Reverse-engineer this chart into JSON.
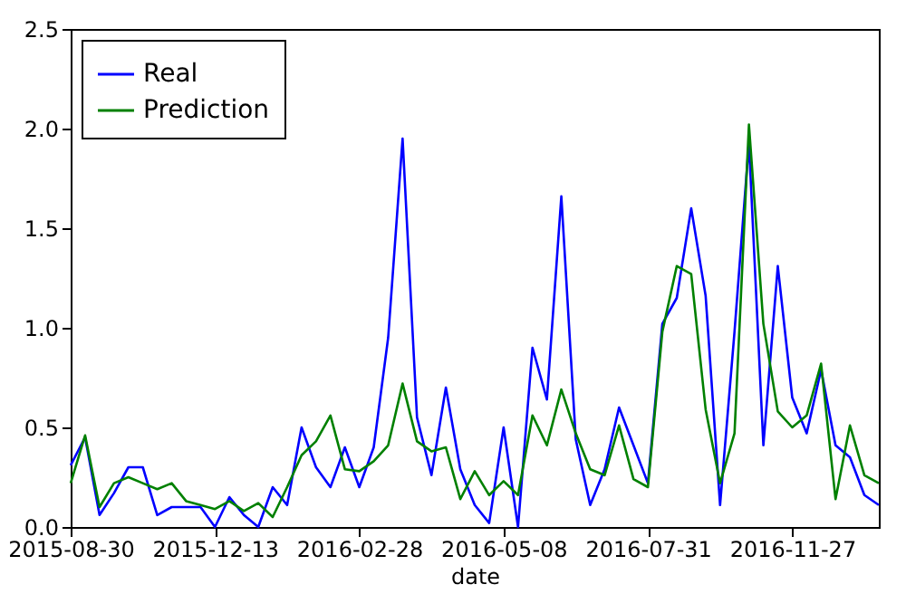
{
  "chart_data": {
    "type": "line",
    "xlabel": "date",
    "categories": [
      "2015-08-30",
      null,
      null,
      null,
      null,
      null,
      null,
      null,
      null,
      null,
      "2015-12-13",
      null,
      null,
      null,
      null,
      null,
      null,
      null,
      null,
      null,
      "2016-02-28",
      null,
      null,
      null,
      null,
      null,
      null,
      null,
      null,
      null,
      "2016-05-08",
      null,
      null,
      null,
      null,
      null,
      null,
      null,
      null,
      null,
      "2016-07-31",
      null,
      null,
      null,
      null,
      null,
      null,
      null,
      null,
      null,
      "2016-11-27",
      null,
      null,
      null,
      null,
      null,
      null
    ],
    "series": [
      {
        "name": "Real",
        "color": "#0000ff",
        "values": [
          0.31,
          0.45,
          0.06,
          0.17,
          0.3,
          0.3,
          0.06,
          0.1,
          0.1,
          0.1,
          0.0,
          0.15,
          0.06,
          0.0,
          0.2,
          0.11,
          0.5,
          0.3,
          0.2,
          0.4,
          0.2,
          0.4,
          0.95,
          1.95,
          0.55,
          0.26,
          0.7,
          0.29,
          0.11,
          0.02,
          0.5,
          0.0,
          0.9,
          0.64,
          1.66,
          0.44,
          0.11,
          0.29,
          0.6,
          0.41,
          0.22,
          1.02,
          1.15,
          1.6,
          1.16,
          0.11,
          0.98,
          1.93,
          0.41,
          1.31,
          0.65,
          0.47,
          0.79,
          0.41,
          0.35,
          0.16,
          0.11
        ]
      },
      {
        "name": "Prediction",
        "color": "#008000",
        "values": [
          0.22,
          0.46,
          0.1,
          0.22,
          0.25,
          0.22,
          0.19,
          0.22,
          0.13,
          0.11,
          0.09,
          0.13,
          0.08,
          0.12,
          0.05,
          0.2,
          0.36,
          0.43,
          0.56,
          0.29,
          0.28,
          0.33,
          0.41,
          0.72,
          0.43,
          0.38,
          0.4,
          0.14,
          0.28,
          0.16,
          0.23,
          0.16,
          0.56,
          0.41,
          0.69,
          0.47,
          0.29,
          0.26,
          0.51,
          0.24,
          0.2,
          0.98,
          1.31,
          1.27,
          0.59,
          0.22,
          0.47,
          2.02,
          1.02,
          0.58,
          0.5,
          0.56,
          0.82,
          0.14,
          0.51,
          0.26,
          0.22
        ]
      }
    ],
    "ylim": [
      0,
      2.5
    ],
    "yticks": [
      {
        "value": 0,
        "label": "0.0"
      },
      {
        "value": 0.5,
        "label": "0.5"
      },
      {
        "value": 1,
        "label": "1.0"
      },
      {
        "value": 1.5,
        "label": "1.5"
      },
      {
        "value": 2,
        "label": "2.0"
      },
      {
        "value": 2.5,
        "label": "2.5"
      }
    ],
    "grid": false,
    "legend": "top left",
    "line_style": "solid",
    "marker": "none"
  }
}
